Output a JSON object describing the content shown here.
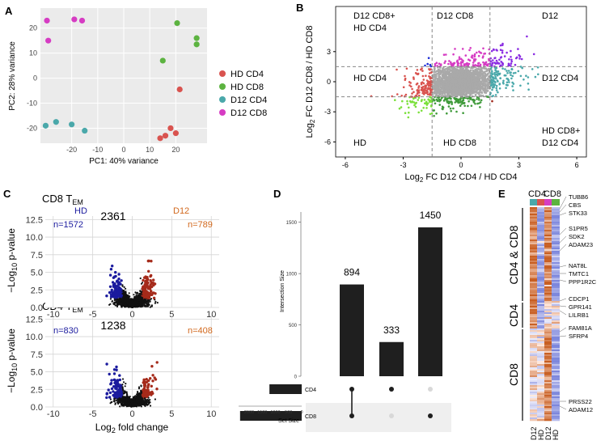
{
  "chart_data": [
    {
      "panel": "A",
      "type": "scatter",
      "xlabel": "PC1: 40% variance",
      "ylabel": "PC2: 28% variance",
      "xticks": [
        -20,
        -10,
        0,
        10,
        20
      ],
      "yticks": [
        -20,
        -10,
        0,
        10,
        20
      ],
      "xlim": [
        -32,
        32
      ],
      "ylim": [
        -26,
        28
      ],
      "legend": [
        {
          "name": "HD CD4",
          "color": "#d9534f"
        },
        {
          "name": "HD CD8",
          "color": "#5cb340"
        },
        {
          "name": "D12 CD4",
          "color": "#4aa8aa"
        },
        {
          "name": "D12 CD8",
          "color": "#d63cc3"
        }
      ],
      "series": [
        {
          "name": "HD CD4",
          "points": [
            [
              21.5,
              -4.5
            ],
            [
              18,
              -20
            ],
            [
              20,
              -22
            ],
            [
              16,
              -23
            ],
            [
              14,
              -24
            ]
          ]
        },
        {
          "name": "HD CD8",
          "points": [
            [
              20.5,
              22
            ],
            [
              28,
              16
            ],
            [
              28,
              13.5
            ],
            [
              15,
              7
            ]
          ]
        },
        {
          "name": "D12 CD4",
          "points": [
            [
              -30,
              -19
            ],
            [
              -26,
              -17.5
            ],
            [
              -20,
              -18.5
            ],
            [
              -15,
              -21
            ]
          ]
        },
        {
          "name": "D12 CD8",
          "points": [
            [
              -29.5,
              23
            ],
            [
              -29,
              15
            ],
            [
              -19,
              23.5
            ],
            [
              -16,
              23
            ]
          ]
        }
      ]
    },
    {
      "panel": "B",
      "type": "scatter",
      "xlabel": "Log2 FC D12 CD4 / HD CD4",
      "ylabel": "Log2 FC D12 CD8 / HD CD8",
      "xticks": [
        -6,
        -3,
        0,
        3,
        6
      ],
      "yticks": [
        -6,
        -3,
        0,
        3
      ],
      "xlim": [
        -6.5,
        6.5
      ],
      "ylim": [
        -7.5,
        7.5
      ],
      "thresholds": {
        "x": [
          -1.5,
          1.5
        ],
        "y": [
          -1.5,
          1.5
        ]
      },
      "regions": [
        {
          "name": "D12 CD8+ HD CD4",
          "color": "#1f2ed6"
        },
        {
          "name": "D12 CD8",
          "color": "#d63cc3"
        },
        {
          "name": "D12",
          "color": "#8a2be2"
        },
        {
          "name": "HD CD4",
          "color": "#d9534f"
        },
        {
          "name": "D12 CD4",
          "color": "#4aa8aa"
        },
        {
          "name": "HD",
          "color": "#7be03c"
        },
        {
          "name": "HD CD8",
          "color": "#3f9a3a"
        },
        {
          "name": "HD CD8+ D12 CD4",
          "color": "#a0261a"
        }
      ]
    },
    {
      "panel": "C-top",
      "type": "volcano",
      "title": "CD8 T_EM",
      "count_total": "2361",
      "left_label": "HD",
      "left_count": "n=1572",
      "right_label": "D12",
      "right_count": "n=789",
      "xticks": [
        -10,
        -5,
        0,
        5,
        10
      ],
      "yticks": [
        0.0,
        2.5,
        5.0,
        7.5,
        10.0,
        12.5
      ],
      "xlim": [
        -11,
        11
      ],
      "ylim": [
        0,
        13
      ]
    },
    {
      "panel": "C-bottom",
      "type": "volcano",
      "title": "CD4 T_EM",
      "count_total": "1238",
      "left_count": "n=830",
      "right_count": "n=408",
      "xticks": [
        -10,
        -5,
        0,
        5,
        10
      ],
      "yticks": [
        0.0,
        2.5,
        5.0,
        7.5,
        10.0,
        12.5
      ],
      "xlim": [
        -11,
        11
      ],
      "ylim": [
        0,
        13
      ],
      "xlabel": "Log2 fold change",
      "ylabel": "-Log10 p-value"
    },
    {
      "panel": "D",
      "type": "bar",
      "title": "UpSet",
      "ylabel": "Intersection Size",
      "yticks": [
        0,
        500,
        1000,
        1500
      ],
      "ylim": [
        0,
        1600
      ],
      "values": [
        894,
        333,
        1450
      ],
      "sets": [
        "CD4",
        "CD8"
      ],
      "set_sizes": [
        1227,
        2344
      ],
      "set_size_label": "Set Size",
      "set_size_ticks": [
        2000,
        1500,
        1000,
        500,
        0
      ],
      "matrix": [
        [
          true,
          true
        ],
        [
          true,
          false
        ],
        [
          false,
          true
        ]
      ]
    },
    {
      "panel": "E",
      "type": "heatmap",
      "column_groups": [
        "CD4",
        "CD8"
      ],
      "columns": [
        "D12",
        "HD",
        "D12",
        "HD"
      ],
      "row_groups": [
        "CD4 & CD8",
        "CD4",
        "CD8"
      ],
      "genes": [
        "TUBB6",
        "CBS",
        "STK33",
        "S1PR5",
        "SDK2",
        "ADAM23",
        "NAT8L",
        "TMTC1",
        "PPP1R2C",
        "CDCP1",
        "GPR141",
        "LILRB1",
        "FAM81A",
        "SFRP4",
        "PRSS22",
        "ADAM12"
      ]
    }
  ],
  "labels": {
    "panel_a": "A",
    "panel_b": "B",
    "panel_c": "C",
    "panel_d": "D",
    "panel_e": "E",
    "a_xlabel": "PC1: 40% variance",
    "a_ylabel": "PC2: 28% variance",
    "b_xlabel_pre": "Log",
    "b_xlabel_sub": "2",
    "b_xlabel_post": " FC D12 CD4 / HD CD4",
    "b_ylabel_pre": "Log",
    "b_ylabel_sub": "2",
    "b_ylabel_post": " FC D12 CD8 / HD CD8",
    "b_q_tl_1": "D12 CD8+",
    "b_q_tl_2": "HD CD4",
    "b_q_tc": "D12 CD8",
    "b_q_tr": "D12",
    "b_q_ml": "HD CD4",
    "b_q_mr": "D12 CD4",
    "b_q_bl": "HD",
    "b_q_bc": "HD CD8",
    "b_q_br_1": "HD CD8+",
    "b_q_br_2": "D12 CD4",
    "c_top_title": "CD8 T",
    "c_top_sub": "EM",
    "c_bot_title": "CD4 T",
    "c_bot_sub": "EM",
    "c_xlabel_pre": "Log",
    "c_xlabel_sub": "2",
    "c_xlabel_post": " fold change",
    "c_ylabel_pre": "−Log",
    "c_ylabel_sub": "10",
    "c_ylabel_post": " p-value",
    "d_ylabel": "Intersection Size",
    "d_set_size": "Set Size",
    "d_set_cd4": "CD4",
    "d_set_cd8": "CD8",
    "d_bar1": "894",
    "d_bar2": "333",
    "d_bar3": "1450",
    "e_col_cd4": "CD4",
    "e_col_cd8": "CD8",
    "e_row_both": "CD4 & CD8",
    "e_row_cd4": "CD4",
    "e_row_cd8": "CD8",
    "e_c1": "D12",
    "e_c2": "HD",
    "e_c3": "D12",
    "e_c4": "HD"
  }
}
